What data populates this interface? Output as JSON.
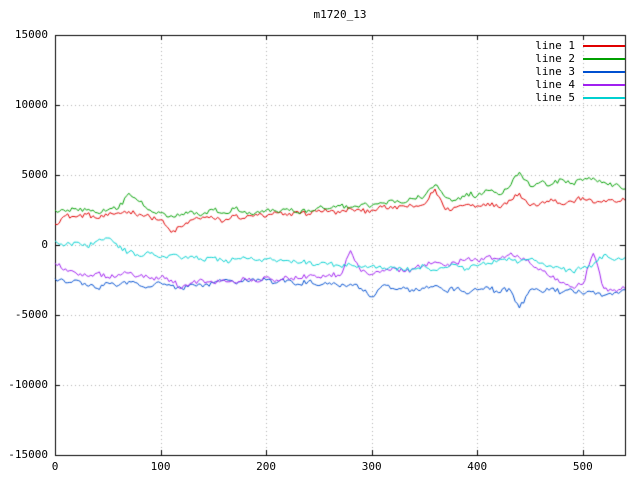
{
  "chart_data": {
    "type": "line",
    "title": "m1720_13",
    "xlabel": "",
    "ylabel": "",
    "xlim": [
      0,
      540
    ],
    "ylim": [
      -15000,
      15000
    ],
    "xticks": [
      0,
      100,
      200,
      300,
      400,
      500
    ],
    "yticks": [
      -15000,
      -10000,
      -5000,
      0,
      5000,
      10000,
      15000
    ],
    "grid": true,
    "legend_position": "top-right",
    "x_step": 10,
    "noise_amplitude": 180,
    "noise_seed": 12345,
    "series": [
      {
        "name": "line 1",
        "color": "#e00000",
        "values": [
          1500,
          2100,
          2000,
          2200,
          1900,
          2100,
          2300,
          2400,
          2200,
          2000,
          1800,
          900,
          1300,
          1800,
          2000,
          1900,
          1700,
          2100,
          1900,
          2200,
          2000,
          2300,
          2100,
          2400,
          2200,
          2500,
          2400,
          2300,
          2600,
          2400,
          2500,
          2700,
          2600,
          2800,
          2700,
          2900,
          4000,
          2500,
          2700,
          2900,
          2800,
          3000,
          2700,
          3200,
          3700,
          2800,
          3000,
          3300,
          2900,
          3100,
          3400,
          3000,
          3200,
          3100,
          3200
        ]
      },
      {
        "name": "line 2",
        "color": "#00a000",
        "values": [
          2500,
          2400,
          2600,
          2500,
          2300,
          2500,
          2600,
          3700,
          3100,
          2500,
          2300,
          2100,
          2200,
          2400,
          2200,
          2500,
          2300,
          2600,
          2400,
          2300,
          2500,
          2400,
          2600,
          2300,
          2500,
          2700,
          2600,
          2800,
          2700,
          2900,
          2800,
          3000,
          3200,
          3000,
          3300,
          3500,
          4300,
          3400,
          3200,
          3700,
          3500,
          3900,
          3600,
          4100,
          5200,
          4200,
          4500,
          4300,
          4700,
          4400,
          4600,
          4800,
          4500,
          4300,
          4000
        ]
      },
      {
        "name": "line 3",
        "color": "#0050d0",
        "values": [
          -2400,
          -2700,
          -2500,
          -2900,
          -3100,
          -2700,
          -2900,
          -2600,
          -2900,
          -3000,
          -2700,
          -2900,
          -3100,
          -2800,
          -3000,
          -2700,
          -2500,
          -2700,
          -2400,
          -2600,
          -2500,
          -2700,
          -2500,
          -2800,
          -2600,
          -2900,
          -2700,
          -3000,
          -2800,
          -3100,
          -3700,
          -2900,
          -3100,
          -3000,
          -3300,
          -3100,
          -2900,
          -3300,
          -3100,
          -3500,
          -3200,
          -3000,
          -3400,
          -3100,
          -4500,
          -3200,
          -3300,
          -3100,
          -3400,
          -3200,
          -3500,
          -3300,
          -3600,
          -3400,
          -3200
        ]
      },
      {
        "name": "line 4",
        "color": "#a020f0",
        "values": [
          -1300,
          -1700,
          -2000,
          -2200,
          -2000,
          -2300,
          -2100,
          -2000,
          -2200,
          -2400,
          -2300,
          -2500,
          -3100,
          -2700,
          -2500,
          -2700,
          -2500,
          -2700,
          -2400,
          -2600,
          -2300,
          -2500,
          -2300,
          -2400,
          -2200,
          -2300,
          -2100,
          -2200,
          -400,
          -1900,
          -2100,
          -1800,
          -1600,
          -1900,
          -1700,
          -1400,
          -1200,
          -1500,
          -1300,
          -1000,
          -1100,
          -800,
          -1000,
          -700,
          -900,
          -1300,
          -1700,
          -2300,
          -2700,
          -3000,
          -2800,
          -600,
          -3100,
          -3200,
          -3100
        ]
      },
      {
        "name": "line 5",
        "color": "#00d0d0",
        "values": [
          300,
          0,
          200,
          -100,
          300,
          500,
          -200,
          -500,
          -800,
          -600,
          -900,
          -700,
          -1000,
          -800,
          -1100,
          -900,
          -1200,
          -1000,
          -900,
          -1100,
          -1000,
          -1200,
          -1100,
          -1300,
          -1200,
          -1400,
          -1300,
          -1500,
          -1400,
          -1600,
          -1500,
          -1700,
          -1600,
          -1800,
          -1700,
          -1500,
          -1800,
          -1600,
          -1400,
          -1700,
          -1500,
          -1300,
          -1100,
          -900,
          -1200,
          -1000,
          -1300,
          -1500,
          -1700,
          -1900,
          -1600,
          -1400,
          -700,
          -1100,
          -900
        ]
      }
    ]
  }
}
